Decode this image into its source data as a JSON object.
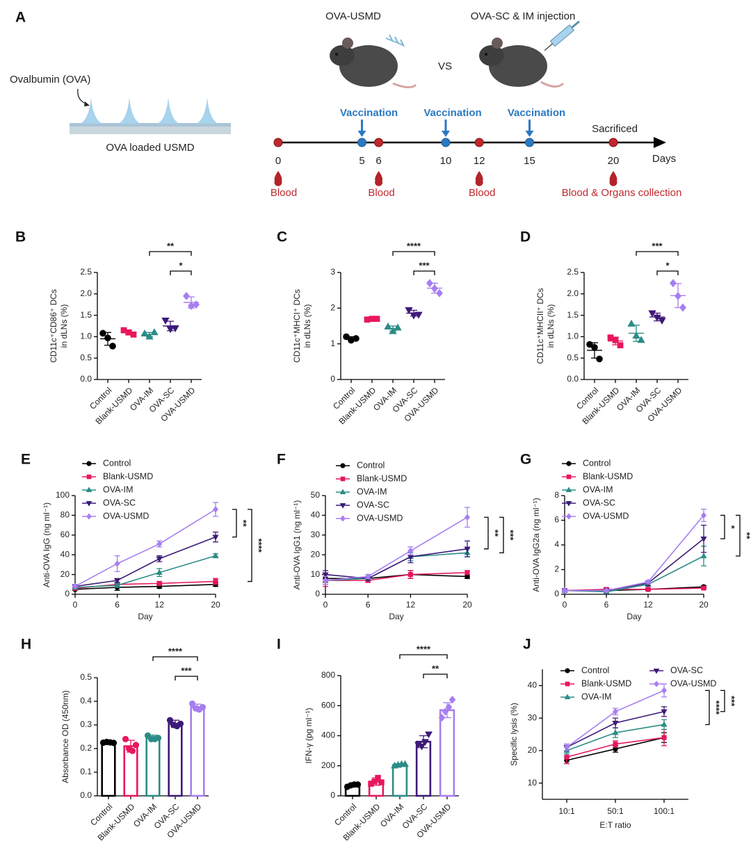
{
  "diagram": {
    "label": "A",
    "ova_label": "Ovalbumin (OVA)",
    "patch_label": "OVA loaded USMD",
    "group_1": "OVA-USMD",
    "versus": "VS",
    "group_2": "OVA-SC & IM injection",
    "timeline": {
      "unit": "Days",
      "days": [
        0,
        5,
        6,
        10,
        12,
        15,
        20
      ],
      "vaccination": {
        "label": "Vaccination",
        "days": [
          5,
          10,
          15
        ]
      },
      "blood": {
        "days": [
          0,
          6,
          12,
          20
        ],
        "labels": [
          "Blood",
          "Blood",
          "Blood",
          "Blood & Organs collection"
        ]
      },
      "sacrifice": {
        "label": "Sacrificed",
        "day": 20
      }
    }
  },
  "chart_data": [
    {
      "type": "strip",
      "label": "B",
      "y_label": [
        "CD11c⁺CD86⁺ DCs",
        "in dLNs (%)"
      ],
      "categories": [
        "Control",
        "Blank-USMD",
        "OVA-IM",
        "OVA-SC",
        "OVA-USMD"
      ],
      "colors": [
        "#000000",
        "#e8175d",
        "#2a8c86",
        "#3d1a78",
        "#a77ef0"
      ],
      "markers": [
        "circle",
        "square",
        "triangle",
        "triangle-down",
        "diamond"
      ],
      "points": [
        [
          1.08,
          0.97,
          0.78
        ],
        [
          1.15,
          1.1,
          1.05
        ],
        [
          1.07,
          1.0,
          1.1
        ],
        [
          1.38,
          1.18,
          1.2
        ],
        [
          1.95,
          1.72,
          1.75
        ]
      ],
      "means": [
        0.95,
        1.1,
        1.05,
        1.25,
        1.8
      ],
      "errors": [
        0.15,
        0.05,
        0.05,
        0.11,
        0.13
      ],
      "ylim": [
        0,
        2.5
      ],
      "yticks": [
        {
          "value": 0,
          "label": "0.0"
        },
        0.5,
        {
          "value": 1,
          "label": "1.0"
        },
        1.5,
        {
          "value": 2,
          "label": "2.0"
        },
        2.5
      ],
      "significance": [
        {
          "between": [
            "OVA-IM",
            "OVA-USMD"
          ],
          "label": "**"
        },
        {
          "between": [
            "OVA-SC",
            "OVA-USMD"
          ],
          "label": "*"
        }
      ]
    },
    {
      "type": "strip",
      "label": "C",
      "y_label": [
        "CD11c⁺MHCI⁺ DCs",
        "in dLNs (%)"
      ],
      "categories": [
        "Control",
        "Blank-USMD",
        "OVA-IM",
        "OVA-SC",
        "OVA-USMD"
      ],
      "colors": [
        "#000000",
        "#e8175d",
        "#2a8c86",
        "#3d1a78",
        "#a77ef0"
      ],
      "markers": [
        "circle",
        "square",
        "triangle",
        "triangle-down",
        "diamond"
      ],
      "points": [
        [
          1.2,
          1.1,
          1.15
        ],
        [
          1.68,
          1.7,
          1.7
        ],
        [
          1.48,
          1.35,
          1.45
        ],
        [
          1.95,
          1.8,
          1.82
        ],
        [
          2.7,
          2.55,
          2.42
        ]
      ],
      "means": [
        1.15,
        1.69,
        1.43,
        1.86,
        2.56
      ],
      "errors": [
        0.05,
        0.01,
        0.07,
        0.08,
        0.14
      ],
      "ylim": [
        0,
        3
      ],
      "yticks": [
        0,
        1,
        2,
        3
      ],
      "significance": [
        {
          "between": [
            "OVA-IM",
            "OVA-USMD"
          ],
          "label": "****"
        },
        {
          "between": [
            "OVA-SC",
            "OVA-USMD"
          ],
          "label": "***"
        }
      ]
    },
    {
      "type": "strip",
      "label": "D",
      "y_label": [
        "CD11c⁺MHCII⁺ DCs",
        "in dLNs (%)"
      ],
      "categories": [
        "Control",
        "Blank-USMD",
        "OVA-IM",
        "OVA-SC",
        "OVA-USMD"
      ],
      "colors": [
        "#000000",
        "#e8175d",
        "#2a8c86",
        "#3d1a78",
        "#a77ef0"
      ],
      "markers": [
        "circle",
        "square",
        "triangle",
        "triangle-down",
        "diamond"
      ],
      "points": [
        [
          0.82,
          0.75,
          0.48
        ],
        [
          0.98,
          0.92,
          0.8
        ],
        [
          1.3,
          1.02,
          0.92
        ],
        [
          1.55,
          1.45,
          1.38
        ],
        [
          2.25,
          1.95,
          1.68
        ]
      ],
      "means": [
        0.68,
        0.9,
        1.08,
        1.46,
        1.96
      ],
      "errors": [
        0.18,
        0.09,
        0.19,
        0.09,
        0.28
      ],
      "ylim": [
        0,
        2.5
      ],
      "yticks": [
        {
          "value": 0,
          "label": "0.0"
        },
        0.5,
        {
          "value": 1,
          "label": "1.0"
        },
        1.5,
        {
          "value": 2,
          "label": "2.0"
        },
        2.5
      ],
      "significance": [
        {
          "between": [
            "OVA-IM",
            "OVA-USMD"
          ],
          "label": "***"
        },
        {
          "between": [
            "OVA-SC",
            "OVA-USMD"
          ],
          "label": "*"
        }
      ]
    },
    {
      "type": "line",
      "label": "E",
      "y_label": "Anti-OVA IgG  (ng ml⁻¹)",
      "x_label": "Day",
      "x": [
        0,
        6,
        12,
        20
      ],
      "xlim": [
        0,
        20
      ],
      "xticks": [
        0,
        6,
        12,
        20
      ],
      "ylim": [
        0,
        100
      ],
      "yticks": [
        0,
        20,
        40,
        60,
        80,
        100
      ],
      "legend_columns": 1,
      "series": [
        {
          "name": "Control",
          "color": "#000000",
          "marker": "circle",
          "values": [
            5,
            7,
            8,
            10
          ],
          "errors": [
            1,
            3,
            2,
            2
          ]
        },
        {
          "name": "Blank-USMD",
          "color": "#e8175d",
          "marker": "square",
          "values": [
            6,
            10,
            11,
            13
          ],
          "errors": [
            1,
            2,
            2,
            3
          ]
        },
        {
          "name": "OVA-IM",
          "color": "#2a8c86",
          "marker": "triangle",
          "values": [
            7,
            9,
            22,
            39
          ],
          "errors": [
            1,
            2,
            4,
            2
          ]
        },
        {
          "name": "OVA-SC",
          "color": "#3d1a78",
          "marker": "triangle-down",
          "values": [
            8,
            14,
            36,
            58
          ],
          "errors": [
            1,
            2,
            3,
            5
          ]
        },
        {
          "name": "OVA-USMD",
          "color": "#a77ef0",
          "marker": "diamond",
          "values": [
            8,
            31,
            51,
            86
          ],
          "errors": [
            1,
            8,
            3,
            7
          ]
        }
      ],
      "significance": [
        {
          "between": [
            "OVA-SC",
            "OVA-USMD"
          ],
          "label": "**"
        },
        {
          "between": [
            "Blank-USMD",
            "OVA-USMD"
          ],
          "label": "****"
        }
      ]
    },
    {
      "type": "line",
      "label": "F",
      "y_label": "Anti-OVA IgG1  (ng ml⁻¹)",
      "x_label": "Day",
      "x": [
        0,
        6,
        12,
        20
      ],
      "xlim": [
        0,
        20
      ],
      "xticks": [
        0,
        6,
        12,
        20
      ],
      "ylim": [
        0,
        50
      ],
      "yticks": [
        0,
        10,
        20,
        30,
        40,
        50
      ],
      "legend_columns": 1,
      "series": [
        {
          "name": "Control",
          "color": "#000000",
          "marker": "circle",
          "values": [
            8,
            8,
            10,
            9
          ],
          "errors": [
            2,
            1,
            2,
            1
          ]
        },
        {
          "name": "Blank-USMD",
          "color": "#e8175d",
          "marker": "square",
          "values": [
            7,
            7,
            10,
            11
          ],
          "errors": [
            3,
            1,
            2,
            1
          ]
        },
        {
          "name": "OVA-IM",
          "color": "#2a8c86",
          "marker": "triangle",
          "values": [
            7,
            8,
            19,
            21
          ],
          "errors": [
            2,
            1,
            2,
            2
          ]
        },
        {
          "name": "OVA-SC",
          "color": "#3d1a78",
          "marker": "triangle-down",
          "values": [
            10,
            8,
            19,
            23
          ],
          "errors": [
            2,
            1,
            3,
            4
          ]
        },
        {
          "name": "OVA-USMD",
          "color": "#a77ef0",
          "marker": "diamond",
          "values": [
            7,
            9,
            22,
            39
          ],
          "errors": [
            2,
            1,
            2,
            5
          ]
        }
      ],
      "significance": [
        {
          "between": [
            "OVA-SC",
            "OVA-USMD"
          ],
          "label": "**"
        },
        {
          "between": [
            "OVA-IM",
            "OVA-USMD"
          ],
          "label": "***"
        }
      ]
    },
    {
      "type": "line",
      "label": "G",
      "y_label": "Anti-OVA IgG2a  (ng ml⁻¹)",
      "x_label": "Day",
      "x": [
        0,
        6,
        12,
        20
      ],
      "xlim": [
        0,
        20
      ],
      "xticks": [
        0,
        6,
        12,
        20
      ],
      "ylim": [
        0,
        8
      ],
      "yticks": [
        0,
        2,
        4,
        6,
        8
      ],
      "legend_columns": 1,
      "series": [
        {
          "name": "Control",
          "color": "#000000",
          "marker": "circle",
          "values": [
            0.3,
            0.3,
            0.4,
            0.6
          ],
          "errors": [
            0.1,
            0.1,
            0.1,
            0.1
          ]
        },
        {
          "name": "Blank-USMD",
          "color": "#e8175d",
          "marker": "square",
          "values": [
            0.3,
            0.4,
            0.4,
            0.5
          ],
          "errors": [
            0.1,
            0.1,
            0.1,
            0.1
          ]
        },
        {
          "name": "OVA-IM",
          "color": "#2a8c86",
          "marker": "triangle",
          "values": [
            0.3,
            0.2,
            0.8,
            3.1
          ],
          "errors": [
            0.1,
            0.1,
            0.1,
            0.8
          ]
        },
        {
          "name": "OVA-SC",
          "color": "#3d1a78",
          "marker": "triangle-down",
          "values": [
            0.3,
            0.3,
            0.9,
            4.5
          ],
          "errors": [
            0.1,
            0.1,
            0.2,
            1.1
          ]
        },
        {
          "name": "OVA-USMD",
          "color": "#a77ef0",
          "marker": "diamond",
          "values": [
            0.3,
            0.3,
            1.0,
            6.4
          ],
          "errors": [
            0.1,
            0.1,
            0.1,
            0.5
          ]
        }
      ],
      "significance": [
        {
          "between": [
            "OVA-SC",
            "OVA-USMD"
          ],
          "label": "*"
        },
        {
          "between": [
            "OVA-IM",
            "OVA-USMD"
          ],
          "label": "**"
        }
      ]
    },
    {
      "type": "bar",
      "label": "H",
      "y_label": "Absorbance OD (450nm)",
      "categories": [
        "Control",
        "Blank-USMD",
        "OVA-IM",
        "OVA-SC",
        "OVA-USMD"
      ],
      "colors": [
        "#000000",
        "#e8175d",
        "#2a8c86",
        "#3d1a78",
        "#a77ef0"
      ],
      "markers": [
        "circle",
        "circle",
        "circle",
        "circle",
        "circle"
      ],
      "values": [
        0.226,
        0.21,
        0.245,
        0.305,
        0.375
      ],
      "errors": [
        0.003,
        0.025,
        0.012,
        0.015,
        0.013
      ],
      "points": [
        [
          0.225,
          0.228,
          0.226,
          0.224
        ],
        [
          0.24,
          0.2,
          0.19,
          0.215
        ],
        [
          0.255,
          0.24,
          0.24,
          0.245
        ],
        [
          0.32,
          0.3,
          0.295,
          0.305
        ],
        [
          0.39,
          0.37,
          0.365,
          0.375
        ]
      ],
      "ylim": [
        0,
        0.5
      ],
      "yticks": [
        {
          "value": 0,
          "label": "0.0"
        },
        0.1,
        0.2,
        0.3,
        0.4,
        0.5
      ],
      "significance": [
        {
          "between": [
            "OVA-IM",
            "OVA-USMD"
          ],
          "label": "****"
        },
        {
          "between": [
            "OVA-SC",
            "OVA-USMD"
          ],
          "label": "***"
        }
      ]
    },
    {
      "type": "bar",
      "label": "I",
      "y_label": "IFN-γ (pg ml⁻¹)",
      "categories": [
        "Control",
        "Blank-USMD",
        "OVA-IM",
        "OVA-SC",
        "OVA-USMD"
      ],
      "colors": [
        "#000000",
        "#e8175d",
        "#2a8c86",
        "#3d1a78",
        "#a77ef0"
      ],
      "markers": [
        "circle",
        "square",
        "triangle",
        "triangle-down",
        "diamond"
      ],
      "values": [
        70,
        95,
        205,
        360,
        570
      ],
      "errors": [
        10,
        25,
        8,
        40,
        50
      ],
      "points": [
        [
          60,
          70,
          75,
          75
        ],
        [
          80,
          95,
          120,
          90
        ],
        [
          200,
          205,
          210,
          210
        ],
        [
          340,
          330,
          360,
          410
        ],
        [
          520,
          560,
          590,
          640
        ]
      ],
      "ylim": [
        0,
        800
      ],
      "yticks": [
        0,
        200,
        400,
        600,
        800
      ],
      "significance": [
        {
          "between": [
            "OVA-IM",
            "OVA-USMD"
          ],
          "label": "****"
        },
        {
          "between": [
            "OVA-SC",
            "OVA-USMD"
          ],
          "label": "**"
        }
      ]
    },
    {
      "type": "line",
      "label": "J",
      "y_label": "Specific lysis (%)",
      "x_label": "E:T ratio",
      "categories": [
        "10:1",
        "50:1",
        "100:1"
      ],
      "ylim": [
        5,
        45
      ],
      "yticks": [
        10,
        20,
        30,
        40
      ],
      "legend_columns": 2,
      "series": [
        {
          "name": "Control",
          "color": "#000000",
          "marker": "circle",
          "values": [
            17,
            20.5,
            24
          ],
          "errors": [
            1,
            1,
            1.5
          ]
        },
        {
          "name": "Blank-USMD",
          "color": "#e8175d",
          "marker": "square",
          "values": [
            18,
            22,
            24
          ],
          "errors": [
            2,
            1,
            2.5
          ]
        },
        {
          "name": "OVA-IM",
          "color": "#2a8c86",
          "marker": "triangle",
          "values": [
            20,
            25.5,
            28
          ],
          "errors": [
            1,
            1.5,
            1.5
          ]
        },
        {
          "name": "OVA-SC",
          "color": "#3d1a78",
          "marker": "triangle-down",
          "values": [
            21,
            28.5,
            32
          ],
          "errors": [
            1,
            1.5,
            1.5
          ]
        },
        {
          "name": "OVA-USMD",
          "color": "#a77ef0",
          "marker": "diamond",
          "values": [
            21,
            32,
            38.5
          ],
          "errors": [
            1,
            1,
            2
          ]
        }
      ],
      "significance": [
        {
          "between": [
            "OVA-IM",
            "OVA-USMD"
          ],
          "label": "****"
        },
        {
          "between": [
            "OVA-SC",
            "OVA-USMD"
          ],
          "label": "***"
        }
      ]
    }
  ]
}
